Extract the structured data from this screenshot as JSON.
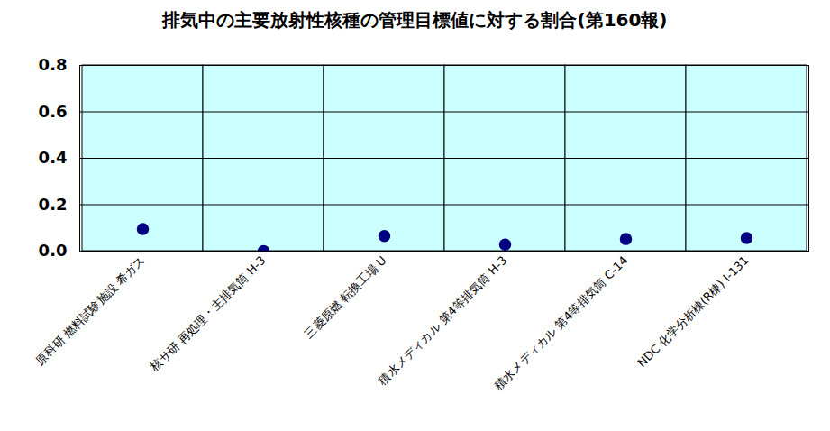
{
  "chart_data": {
    "type": "scatter",
    "title": "排気中の主要放射性核種の管理目標値に対する割合(第160報)",
    "categories": [
      "原科研 燃料試験施設 希ガス",
      "核サ研 再処理・主排気筒 H-3",
      "三菱原燃 転換工場 U",
      "積水メディカル 第4等排気筒 H-3",
      "積水メディカル 第4等排気筒 C-14",
      "NDC 化学分析棟(R棟) I-131"
    ],
    "values": [
      0.095,
      0.0,
      0.065,
      0.028,
      0.052,
      0.056
    ],
    "color": "#000080",
    "marker": "circle",
    "ylim": [
      0,
      0.8
    ],
    "yticks": [
      {
        "value": 0,
        "label": "0.0"
      },
      0.2,
      0.4,
      0.6,
      0.8
    ],
    "grid": true
  }
}
